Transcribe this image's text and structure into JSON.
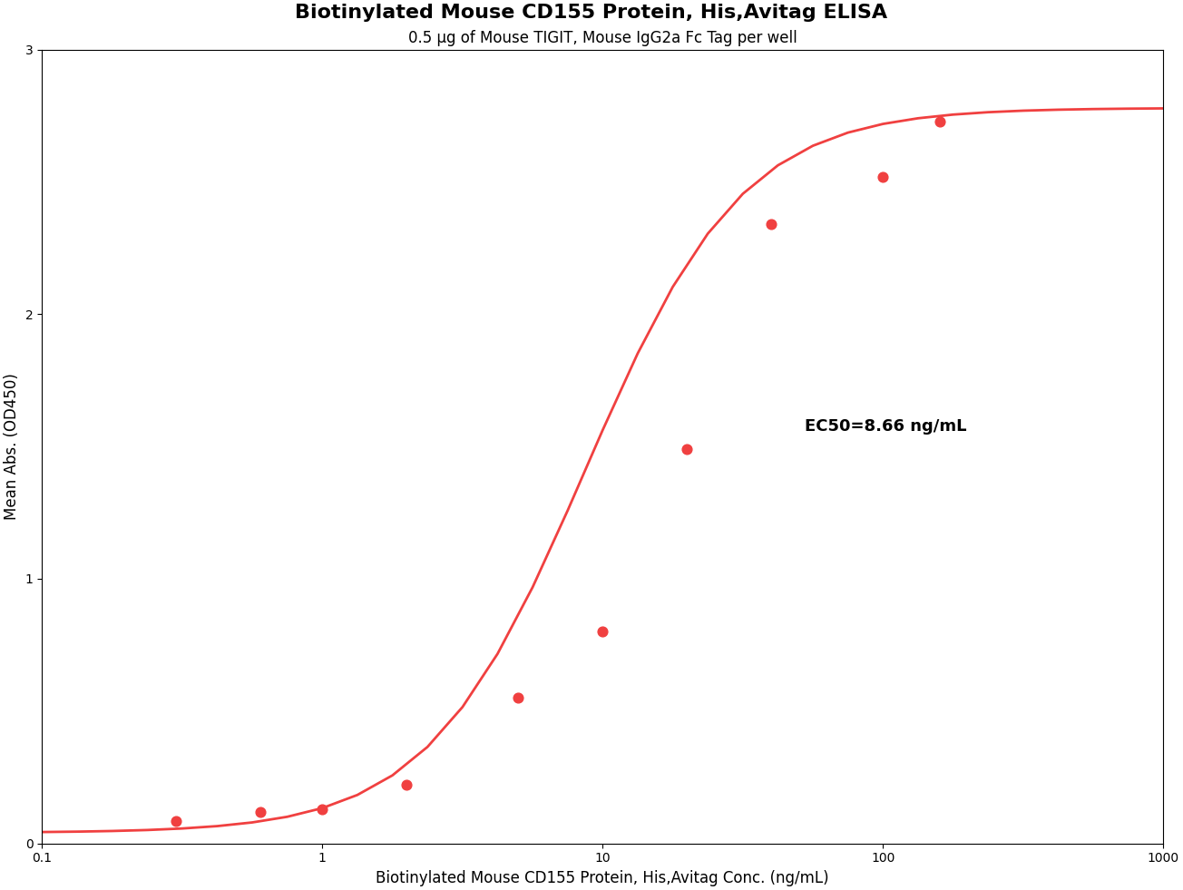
{
  "chart_data": {
    "type": "scatter",
    "title": "Biotinylated Mouse CD155 Protein, His,Avitag ELISA",
    "subtitle": "0.5 μg of Mouse TIGIT, Mouse IgG2a Fc Tag per well",
    "xlabel": "Biotinylated Mouse CD155 Protein, His,Avitag Conc. (ng/mL)",
    "ylabel": "Mean Abs. (OD450)",
    "annotation": "EC50=8.66 ng/mL",
    "log": "x",
    "grid": false,
    "xlim": [
      0.1,
      1000
    ],
    "ylim": [
      0,
      3
    ],
    "xticks": [
      0.1,
      1,
      10,
      100,
      1000
    ],
    "yticks": [
      0,
      1,
      2,
      3
    ],
    "series": [
      {
        "type": "line",
        "color": "#F04040",
        "x": [
          0.1,
          0.13335,
          0.17783,
          0.23714,
          0.31623,
          0.4217,
          0.56234,
          0.74989,
          1,
          1.3335,
          1.7783,
          2.3714,
          3.1623,
          4.217,
          5.6234,
          7.4989,
          10,
          13.335,
          17.783,
          23.714,
          31.623,
          42.17,
          56.234,
          74.989,
          100,
          133.35,
          177.83,
          237.14,
          316.23,
          421.7,
          562.34,
          749.89,
          1000
        ],
        "values": [
          0.0427,
          0.0442,
          0.0466,
          0.0503,
          0.0561,
          0.0651,
          0.079,
          0.1004,
          0.1332,
          0.1829,
          0.2569,
          0.3644,
          0.5152,
          0.7164,
          0.9679,
          1.2578,
          1.5621,
          1.852,
          2.1035,
          2.3048,
          2.4555,
          2.563,
          2.6371,
          2.6868,
          2.7196,
          2.741,
          2.7549,
          2.7639,
          2.7697,
          2.7734,
          2.7758,
          2.7773,
          2.7783
        ]
      },
      {
        "type": "scatter",
        "color": "#F04040",
        "x": [
          0.3,
          0.6,
          1.0,
          2.0,
          5.0,
          10.0,
          20.0,
          40.0,
          100.0,
          160.0
        ],
        "values": [
          0.085,
          0.12,
          0.13,
          0.22,
          0.55,
          0.8,
          1.49,
          2.34,
          2.52,
          2.73
        ]
      }
    ]
  }
}
